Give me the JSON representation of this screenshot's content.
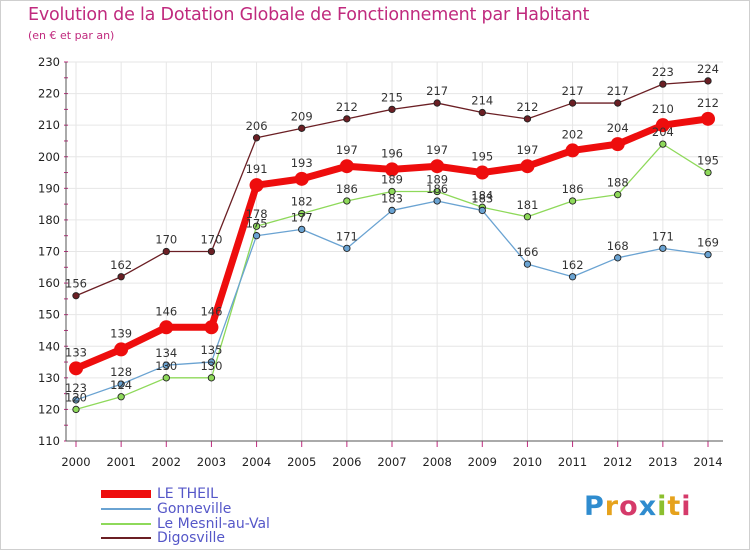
{
  "title": "Evolution de la Dotation Globale de Fonctionnement par Habitant",
  "subtitle": "(en € et par an)",
  "logo": "Proxiti",
  "chart_data": {
    "type": "line",
    "x": [
      "2000",
      "2001",
      "2002",
      "2003",
      "2004",
      "2005",
      "2006",
      "2007",
      "2008",
      "2009",
      "2010",
      "2011",
      "2012",
      "2013",
      "2014"
    ],
    "ylim": [
      110,
      230
    ],
    "yticks": [
      110,
      120,
      130,
      140,
      150,
      160,
      170,
      180,
      190,
      200,
      210,
      220,
      230
    ],
    "grid": true,
    "legend_position": "bottom-left",
    "series": [
      {
        "name": "Digosville",
        "color": "#6b1f24",
        "values": [
          156,
          162,
          170,
          170,
          206,
          209,
          212,
          215,
          217,
          214,
          212,
          217,
          217,
          223,
          224
        ]
      },
      {
        "name": "Le Mesnil-au-Val",
        "color": "#8ed95a",
        "values": [
          120,
          124,
          130,
          130,
          178,
          182,
          186,
          189,
          189,
          184,
          181,
          186,
          188,
          204,
          195
        ]
      },
      {
        "name": "Gonneville",
        "color": "#6aa3d2",
        "values": [
          123,
          128,
          134,
          135,
          175,
          177,
          171,
          183,
          186,
          183,
          166,
          162,
          168,
          171,
          169
        ]
      },
      {
        "name": "LE THEIL",
        "color": "#ee0d0d",
        "values": [
          133,
          139,
          146,
          146,
          191,
          193,
          197,
          196,
          197,
          195,
          197,
          202,
          204,
          210,
          212
        ]
      }
    ],
    "legend": [
      "LE THEIL",
      "Gonneville",
      "Le Mesnil-au-Val",
      "Digosville"
    ]
  }
}
